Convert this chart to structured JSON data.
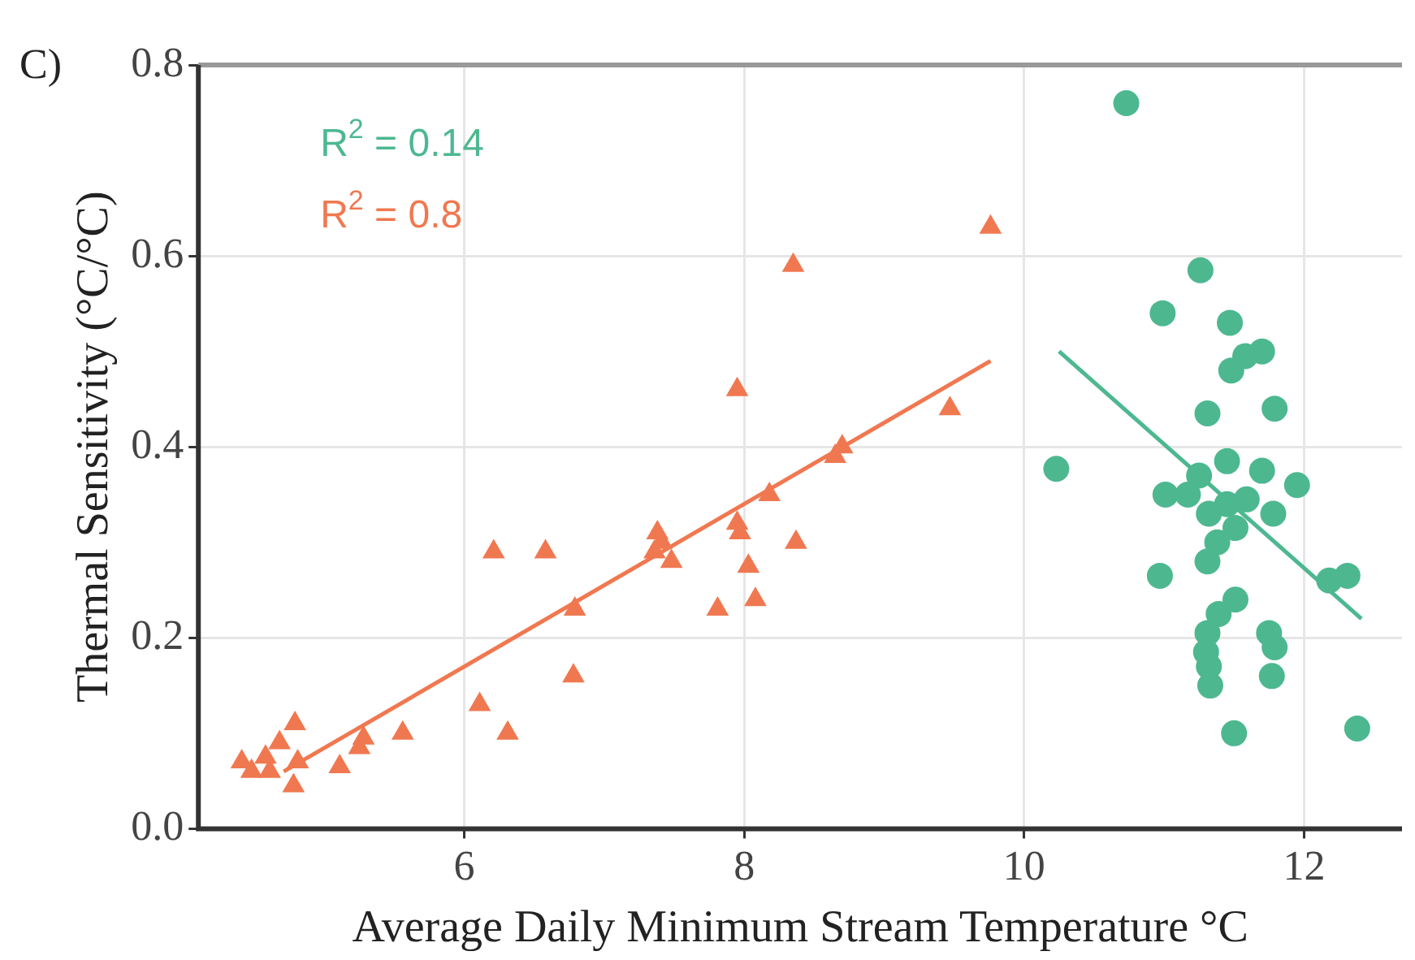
{
  "chart_data": {
    "type": "scatter",
    "xlabel": "Average Daily Minimum Stream Temperature °C",
    "ylabel": "Thermal Sensitivity (°C/°C)",
    "annotations": [
      "C)",
      "R$^{2}$ = 0.14",
      "R$^{2}$ = 0.8"
    ],
    "xlim": [
      4.1,
      12.7
    ],
    "xticks": [
      6,
      8,
      10,
      12
    ],
    "ylim": [
      0,
      0.8
    ],
    "yticks": [
      {
        "value": 0,
        "label": "0.0"
      },
      0.2,
      0.4,
      0.6,
      0.8
    ],
    "grid": true,
    "legend": false,
    "series": [
      {
        "marker": "triangle",
        "color": "#f07850",
        "x": [
          9.76,
          8.35,
          7.95,
          9.47,
          8.7,
          8.65,
          8.18,
          7.95,
          7.97,
          8.37,
          7.38,
          7.41,
          7.48,
          7.36,
          6.21,
          6.58,
          8.03,
          8.08,
          7.81,
          6.79,
          6.78,
          6.11,
          6.31,
          5.56,
          5.28,
          5.25,
          5.11,
          4.79,
          4.68,
          4.58,
          4.48,
          4.61,
          4.78,
          4.81,
          4.41
        ],
        "values": [
          0.63,
          0.59,
          0.46,
          0.44,
          0.4,
          0.39,
          0.35,
          0.32,
          0.31,
          0.3,
          0.31,
          0.3,
          0.28,
          0.29,
          0.29,
          0.29,
          0.275,
          0.24,
          0.23,
          0.23,
          0.16,
          0.13,
          0.1,
          0.1,
          0.095,
          0.085,
          0.065,
          0.11,
          0.09,
          0.075,
          0.06,
          0.06,
          0.045,
          0.07,
          0.07
        ]
      },
      {
        "type": "line",
        "marker": "none",
        "color": "#f07850",
        "x": [
          4.71,
          9.76
        ],
        "values": [
          0.06,
          0.49
        ]
      },
      {
        "marker": "circle",
        "color": "#4db890",
        "x": [
          10.73,
          11.26,
          10.99,
          11.47,
          11.7,
          11.58,
          11.48,
          11.31,
          11.79,
          10.23,
          11.45,
          11.01,
          11.17,
          11.7,
          11.95,
          11.59,
          11.32,
          11.51,
          11.38,
          11.78,
          11.31,
          11.45,
          11.25,
          10.97,
          12.31,
          12.18,
          11.51,
          11.39,
          11.31,
          11.3,
          11.32,
          11.33,
          11.75,
          11.79,
          11.77,
          11.5,
          12.38
        ],
        "values": [
          0.76,
          0.585,
          0.54,
          0.53,
          0.5,
          0.495,
          0.48,
          0.435,
          0.44,
          0.377,
          0.385,
          0.35,
          0.35,
          0.375,
          0.36,
          0.345,
          0.33,
          0.315,
          0.3,
          0.33,
          0.28,
          0.34,
          0.37,
          0.265,
          0.265,
          0.26,
          0.24,
          0.225,
          0.205,
          0.185,
          0.17,
          0.15,
          0.205,
          0.19,
          0.16,
          0.1,
          0.105
        ]
      },
      {
        "type": "line",
        "marker": "none",
        "color": "#4db890",
        "x": [
          10.25,
          12.41
        ],
        "values": [
          0.5,
          0.22
        ]
      }
    ]
  }
}
